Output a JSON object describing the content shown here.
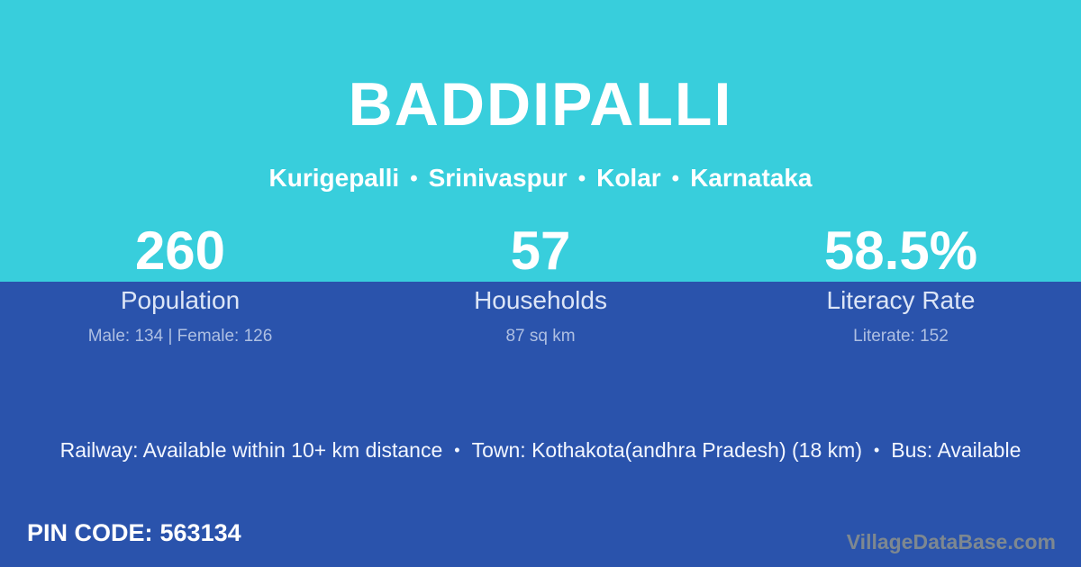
{
  "colors": {
    "cyan": "#38CEDC",
    "blue": "#2A53AC",
    "white": "#FFFFFF",
    "label": "#DCE5F6",
    "detail": "#AEBFE2",
    "watermark": "#7E8890"
  },
  "header": {
    "title": "BADDIPALLI",
    "breadcrumb": {
      "separator": "•",
      "items": [
        "Kurigepalli",
        "Srinivaspur",
        "Kolar",
        "Karnataka"
      ]
    }
  },
  "stats": [
    {
      "value": "260",
      "label": "Population",
      "detail": "Male: 134 | Female: 126"
    },
    {
      "value": "57",
      "label": "Households",
      "detail": "87 sq km"
    },
    {
      "value": "58.5%",
      "label": "Literacy Rate",
      "detail": "Literate: 152"
    }
  ],
  "transport": {
    "separator": "•",
    "items": [
      "Railway: Available within 10+ km distance",
      "Town: Kothakota(andhra Pradesh) (18 km)",
      "Bus: Available"
    ]
  },
  "footer": {
    "pin_label": "PIN CODE:",
    "pin_value": "563134",
    "watermark": "VillageDataBase.com"
  }
}
